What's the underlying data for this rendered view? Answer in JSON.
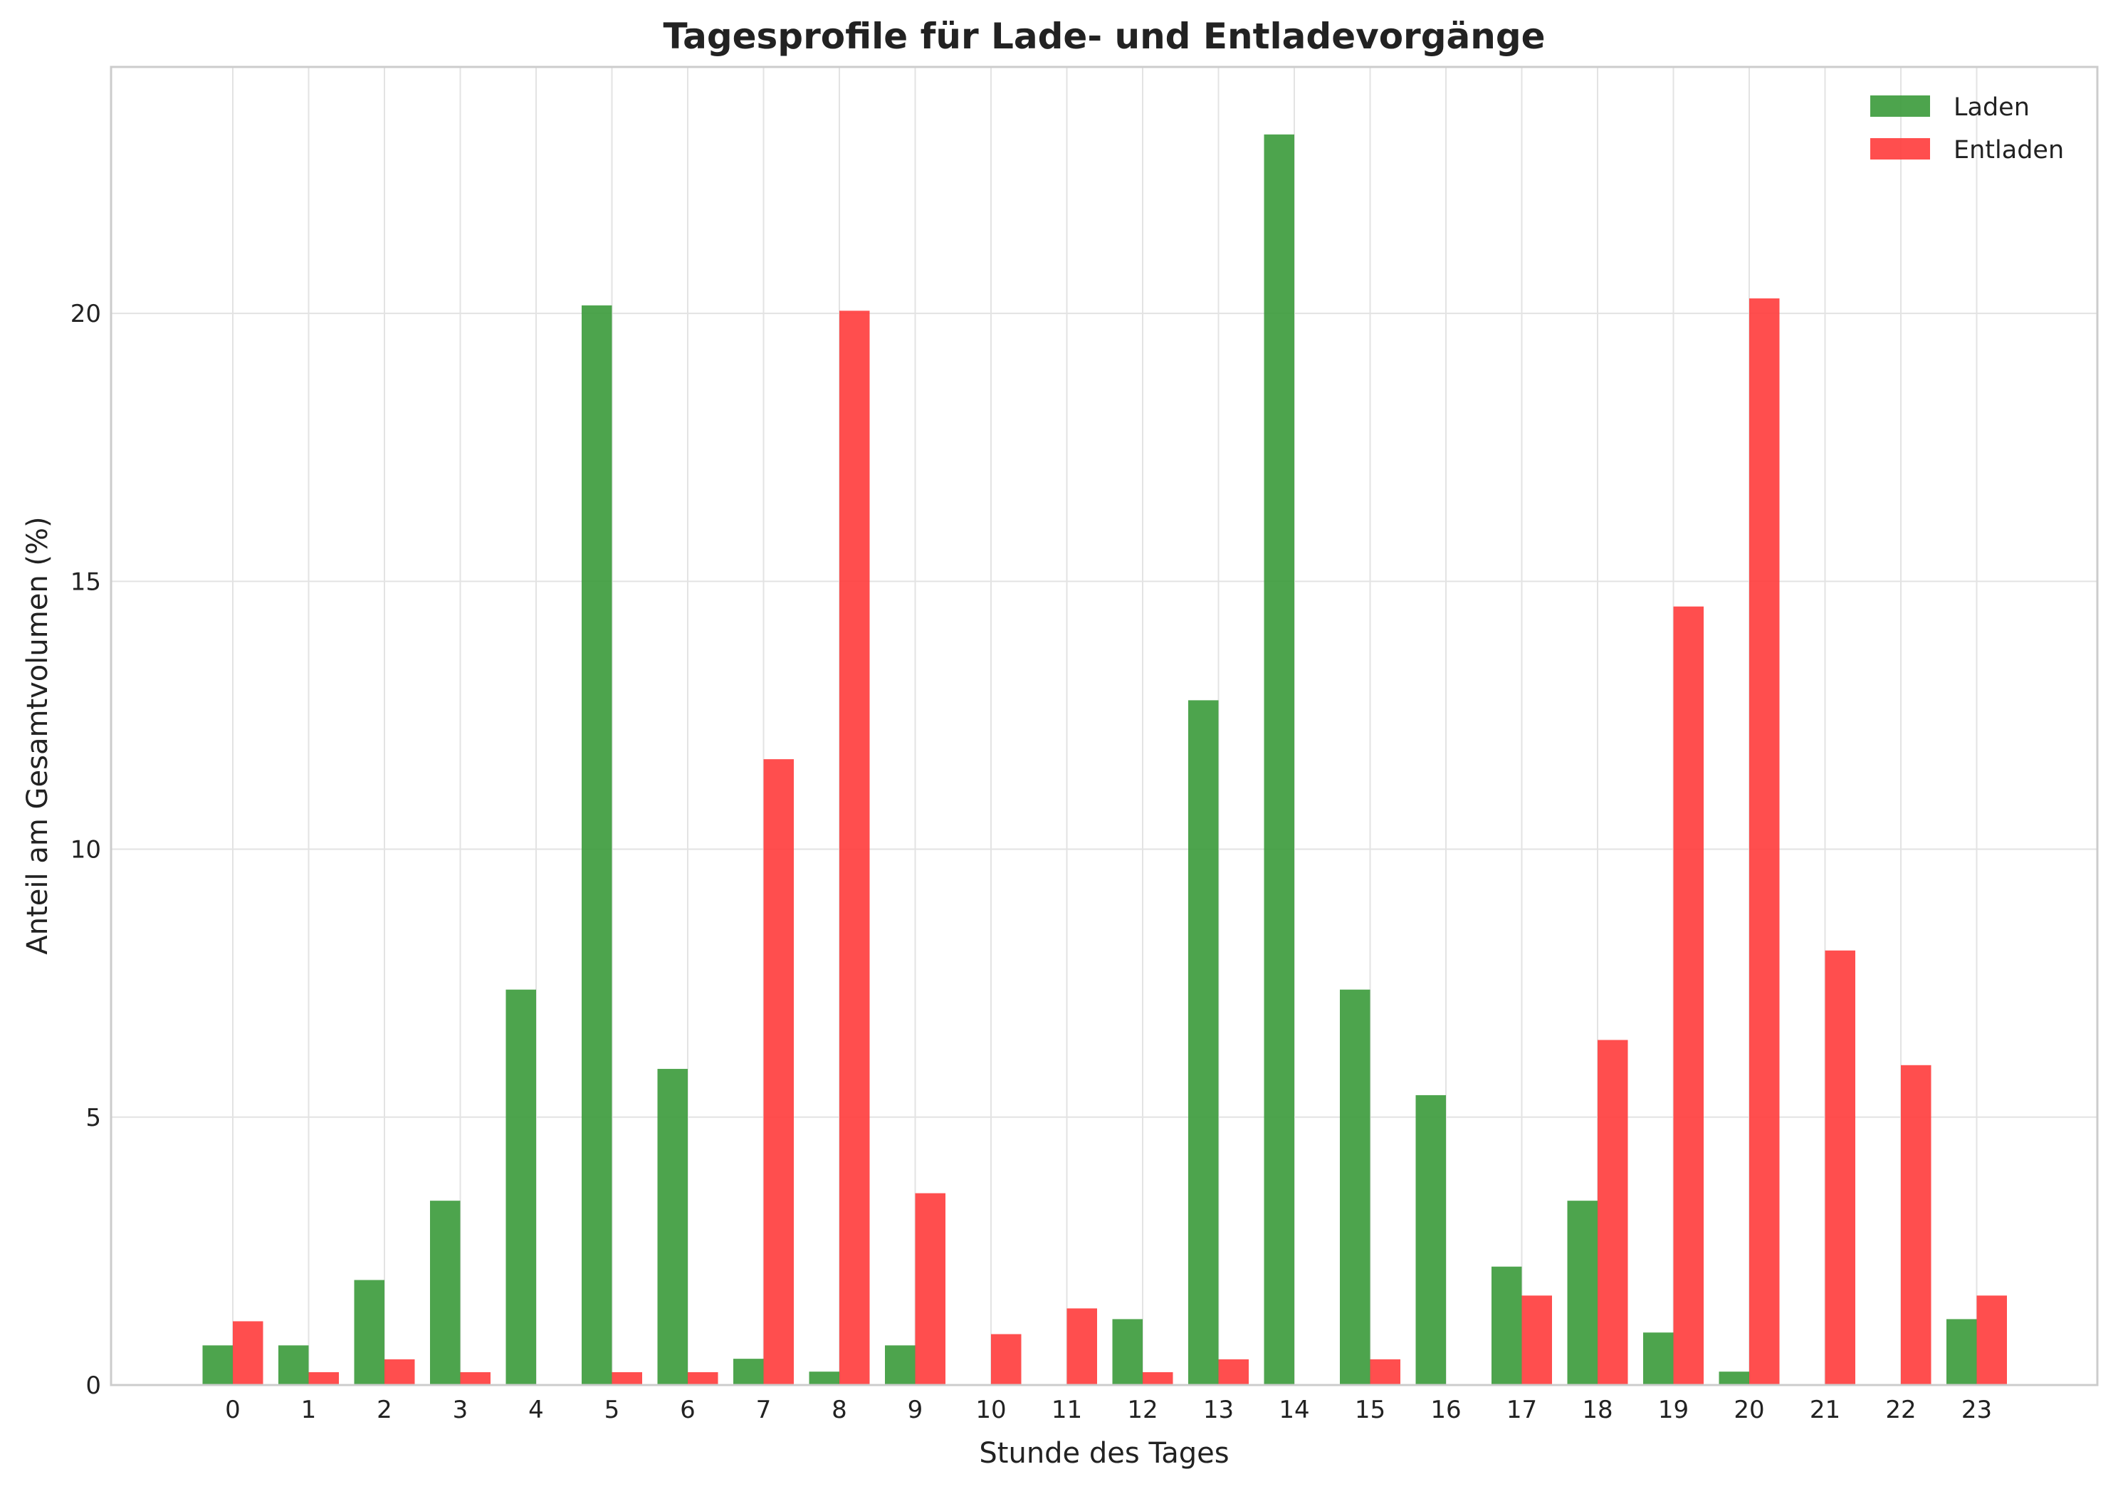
{
  "chart_data": {
    "type": "bar",
    "title": "Tagesprofile für Lade- und Entladevorgänge",
    "xlabel": "Stunde des Tages",
    "ylabel": "Anteil am Gesamtvolumen (%)",
    "categories": [
      "0",
      "1",
      "2",
      "3",
      "4",
      "5",
      "6",
      "7",
      "8",
      "9",
      "10",
      "11",
      "12",
      "13",
      "14",
      "15",
      "16",
      "17",
      "18",
      "19",
      "20",
      "21",
      "22",
      "23"
    ],
    "yticks": [
      0,
      5,
      10,
      15,
      20
    ],
    "ylim": [
      0,
      24.6
    ],
    "grid": true,
    "legend_position": "top-right",
    "series": [
      {
        "name": "Laden",
        "color": "#3a9a3a",
        "values": [
          0.74,
          0.74,
          1.96,
          3.44,
          7.38,
          20.15,
          5.9,
          0.49,
          0.25,
          0.74,
          0,
          0,
          1.23,
          12.78,
          23.34,
          7.38,
          5.41,
          2.21,
          3.44,
          0.98,
          0.25,
          0,
          0,
          1.23
        ]
      },
      {
        "name": "Entladen",
        "color": "#ff3b3b",
        "values": [
          1.19,
          0.24,
          0.48,
          0.24,
          0,
          0.24,
          0.24,
          11.68,
          20.05,
          3.58,
          0.95,
          1.43,
          0.24,
          0.48,
          0,
          0.48,
          0,
          1.67,
          6.44,
          14.53,
          20.28,
          8.11,
          5.97,
          1.67
        ]
      }
    ]
  }
}
